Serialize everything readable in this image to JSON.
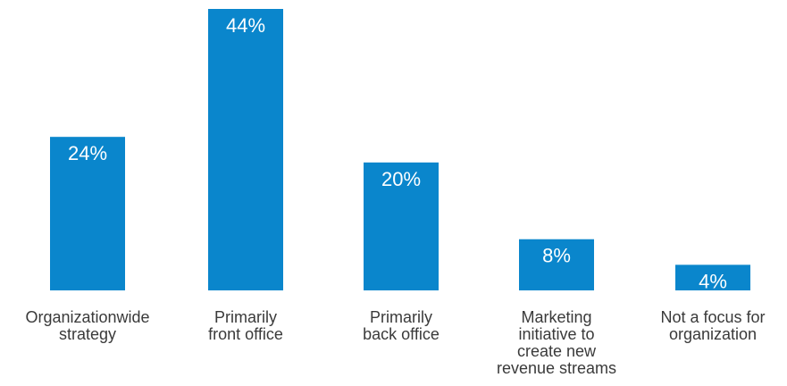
{
  "chart_data": {
    "type": "bar",
    "categories": [
      [
        "Organizationwide",
        "strategy"
      ],
      [
        "Primarily",
        "front office"
      ],
      [
        "Primarily",
        "back office"
      ],
      [
        "Marketing",
        "initiative to",
        "create new",
        "revenue streams"
      ],
      [
        "Not a focus for",
        "organization"
      ]
    ],
    "values": [
      24,
      44,
      20,
      8,
      4
    ],
    "value_labels": [
      "24%",
      "44%",
      "20%",
      "8%",
      "4%"
    ],
    "unit": "%",
    "ylim": [
      0,
      44
    ],
    "bar_color": "#0a86cc",
    "value_label_color": "#ffffff",
    "title": "",
    "xlabel": "",
    "ylabel": "",
    "grid": false,
    "legend": "none"
  }
}
